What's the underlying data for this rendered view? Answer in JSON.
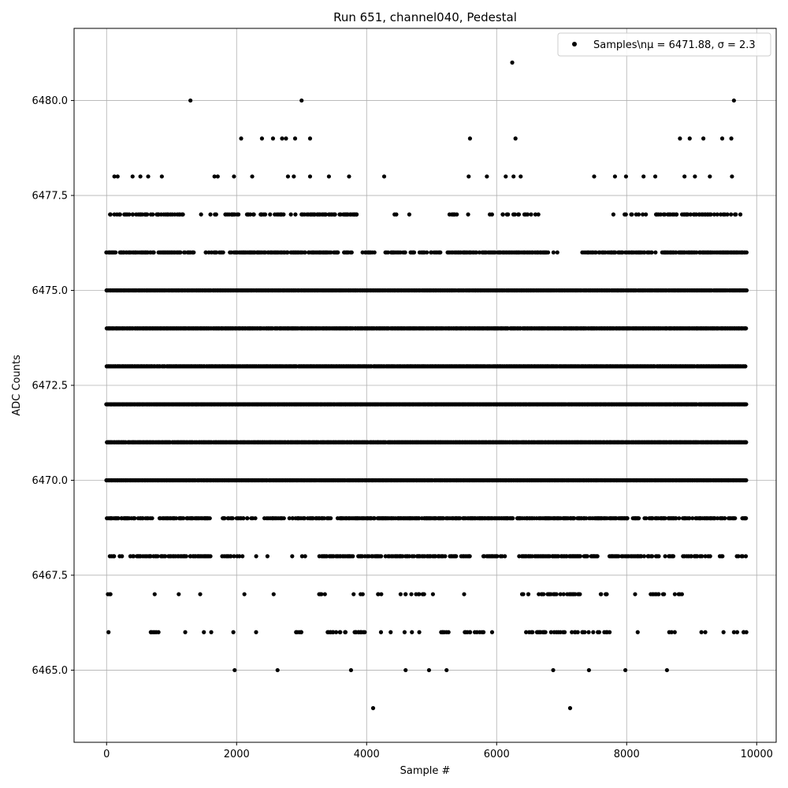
{
  "chart_data": {
    "type": "scatter",
    "title": "Run 651, channel040, Pedestal",
    "xlabel": "Sample #",
    "ylabel": "ADC Counts",
    "xlim": [
      -500,
      10300
    ],
    "ylim": [
      6463.1,
      6481.9
    ],
    "xticks": [
      0,
      2000,
      4000,
      6000,
      8000,
      10000
    ],
    "xtick_labels": [
      "0",
      "2000",
      "4000",
      "6000",
      "8000",
      "10000"
    ],
    "yticks": [
      6465.0,
      6467.5,
      6470.0,
      6472.5,
      6475.0,
      6477.5,
      6480.0
    ],
    "ytick_labels": [
      "6465.0",
      "6467.5",
      "6470.0",
      "6472.5",
      "6475.0",
      "6477.5",
      "6480.0"
    ],
    "grid": true,
    "legend_position": "top-right",
    "color": "#000000",
    "series": [
      {
        "name": "Samples\\n$\\mu$ = 6471.88, $\\sigma$ = 2.3",
        "legend_label": "Samples\\nμ = 6471.88, σ = 2.3",
        "x": [
          1290,
          3000,
          9650,
          6240,
          2070,
          2390,
          2560,
          2700,
          2760,
          2900,
          3130,
          5590,
          6290,
          8820,
          8970,
          9180,
          9470,
          9610,
          120,
          170,
          400,
          520,
          640,
          850,
          1660,
          1710,
          1960,
          2240,
          2790,
          2880,
          3130,
          3420,
          3730,
          4270,
          5570,
          5850,
          6140,
          6260,
          6370,
          7500,
          7820,
          7990,
          8260,
          8440,
          8890,
          9050,
          9280,
          9620,
          1970,
          2630,
          3760,
          4100,
          4600,
          4960,
          5230,
          6870,
          7130,
          7420,
          7980,
          8620,
          30,
          20,
          60,
          5170,
          7680,
          8130,
          8490,
          9650,
          9150,
          9210,
          9800,
          50,
          680,
          740,
          1110,
          1210,
          1440,
          1610,
          1950,
          2120,
          2300,
          2570,
          2990,
          3270,
          3480,
          3800,
          3920,
          4180,
          4370,
          4600,
          4810,
          5020,
          5260,
          5500,
          5740,
          5930,
          6410,
          6620,
          6810,
          6950,
          7180,
          7330,
          7690,
          8170,
          8370,
          8740,
          9490,
          9700
        ],
        "y": [
          6480,
          6480,
          6480,
          6481,
          6479,
          6479,
          6479,
          6479,
          6479,
          6479,
          6479,
          6479,
          6479,
          6479,
          6479,
          6479,
          6479,
          6479,
          6478,
          6478,
          6478,
          6478,
          6478,
          6478,
          6478,
          6478,
          6478,
          6478,
          6478,
          6478,
          6478,
          6478,
          6478,
          6478,
          6478,
          6478,
          6478,
          6478,
          6478,
          6478,
          6478,
          6478,
          6478,
          6478,
          6478,
          6478,
          6478,
          6478,
          6465,
          6465,
          6465,
          6464,
          6465,
          6465,
          6465,
          6465,
          6464,
          6465,
          6465,
          6465,
          6466,
          6467,
          6467,
          6466,
          6467,
          6467,
          6467,
          6466,
          6466,
          6466,
          6466,
          6467,
          6466,
          6467,
          6467,
          6466,
          6467,
          6466,
          6466,
          6467,
          6466,
          6467,
          6466,
          6467,
          6466,
          6467,
          6466,
          6467,
          6466,
          6467,
          6466,
          6467,
          6466,
          6467,
          6466,
          6466,
          6467,
          6466,
          6467,
          6466,
          6467,
          6466,
          6467,
          6466,
          6467,
          6466,
          6466,
          6466
        ]
      }
    ],
    "dense_rows": [
      {
        "y": 6477,
        "segments": [
          [
            0,
            1200,
            0.45
          ],
          [
            1450,
            2050,
            0.25
          ],
          [
            2160,
            3900,
            0.4
          ],
          [
            4420,
            4700,
            0.15
          ],
          [
            5240,
            5650,
            0.3
          ],
          [
            5800,
            6650,
            0.35
          ],
          [
            7780,
            8300,
            0.3
          ],
          [
            8450,
            9750,
            0.4
          ]
        ]
      },
      {
        "y": 6476,
        "segments": [
          [
            0,
            1350,
            0.8
          ],
          [
            1520,
            1800,
            0.5
          ],
          [
            1890,
            3580,
            0.75
          ],
          [
            3620,
            4150,
            0.4
          ],
          [
            4280,
            5150,
            0.4
          ],
          [
            5250,
            6800,
            0.7
          ],
          [
            6850,
            7000,
            0.2
          ],
          [
            7300,
            8450,
            0.55
          ],
          [
            8550,
            9850,
            0.8
          ]
        ]
      },
      {
        "y": 6475,
        "segments": [
          [
            0,
            9850,
            0.95
          ]
        ]
      },
      {
        "y": 6474,
        "segments": [
          [
            0,
            9850,
            0.97
          ]
        ]
      },
      {
        "y": 6473,
        "segments": [
          [
            0,
            9850,
            0.97
          ]
        ]
      },
      {
        "y": 6472,
        "segments": [
          [
            0,
            9850,
            0.99
          ]
        ]
      },
      {
        "y": 6471,
        "segments": [
          [
            0,
            9850,
            0.98
          ]
        ]
      },
      {
        "y": 6470,
        "segments": [
          [
            0,
            9850,
            0.98
          ]
        ]
      },
      {
        "y": 6469,
        "segments": [
          [
            0,
            700,
            0.6
          ],
          [
            800,
            1600,
            0.6
          ],
          [
            1750,
            2300,
            0.55
          ],
          [
            2400,
            3500,
            0.45
          ],
          [
            3550,
            6250,
            0.75
          ],
          [
            6300,
            8050,
            0.7
          ],
          [
            8100,
            9850,
            0.6
          ]
        ]
      },
      {
        "y": 6468,
        "segments": [
          [
            0,
            250,
            0.3
          ],
          [
            370,
            1600,
            0.6
          ],
          [
            1750,
            2100,
            0.35
          ],
          [
            2250,
            2500,
            0.2
          ],
          [
            2850,
            3100,
            0.1
          ],
          [
            3200,
            5600,
            0.55
          ],
          [
            5800,
            6200,
            0.4
          ],
          [
            6350,
            7550,
            0.6
          ],
          [
            7700,
            8750,
            0.45
          ],
          [
            8850,
            9500,
            0.35
          ],
          [
            9650,
            9850,
            0.3
          ]
        ]
      },
      {
        "y": 6467,
        "segments": [
          [
            3280,
            3450,
            0.2
          ],
          [
            3900,
            3950,
            0.3
          ],
          [
            4150,
            4250,
            0.25
          ],
          [
            4520,
            4950,
            0.25
          ],
          [
            6350,
            6600,
            0.2
          ],
          [
            6650,
            7300,
            0.4
          ],
          [
            7600,
            7700,
            0.3
          ],
          [
            7950,
            8000,
            0.3
          ],
          [
            8400,
            8880,
            0.2
          ]
        ]
      },
      {
        "y": 6466,
        "segments": [
          [
            690,
            800,
            0.2
          ],
          [
            1440,
            1500,
            0.4
          ],
          [
            2920,
            3000,
            0.3
          ],
          [
            3380,
            3700,
            0.35
          ],
          [
            3820,
            4000,
            0.4
          ],
          [
            4150,
            4320,
            0.25
          ],
          [
            4580,
            4720,
            0.3
          ],
          [
            5150,
            5300,
            0.3
          ],
          [
            5500,
            5800,
            0.25
          ],
          [
            6450,
            6750,
            0.35
          ],
          [
            6820,
            7050,
            0.45
          ],
          [
            7150,
            7250,
            0.3
          ],
          [
            7300,
            7600,
            0.25
          ],
          [
            7650,
            7750,
            0.3
          ],
          [
            8620,
            8720,
            0.3
          ],
          [
            9800,
            9850,
            0.3
          ]
        ]
      }
    ]
  }
}
